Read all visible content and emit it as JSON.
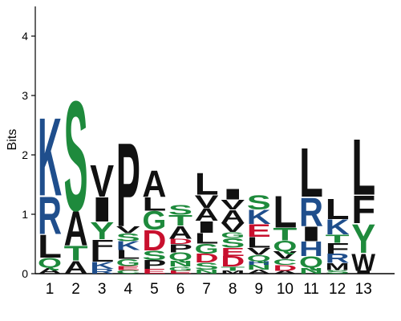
{
  "chart_data": {
    "type": "sequence-logo",
    "ylabel": "Bits",
    "ylim": [
      0,
      4.5
    ],
    "yticks": [
      "0",
      "1",
      "2",
      "3",
      "4"
    ],
    "grid": false,
    "legend": "none",
    "colors": {
      "K": "#1f4e8c",
      "R": "#1f4e8c",
      "H": "#1f4e8c",
      "S": "#1e8a3c",
      "T": "#1e8a3c",
      "G": "#1e8a3c",
      "Y": "#1e8a3c",
      "Q": "#1e8a3c",
      "N": "#1e8a3c",
      "C": "#1e8a3c",
      "D": "#c8102e",
      "E": "#c8102e",
      "A": "#111111",
      "V": "#111111",
      "L": "#111111",
      "I": "#111111",
      "P": "#111111",
      "F": "#111111",
      "M": "#111111",
      "W": "#111111"
    },
    "positions": [
      {
        "label": "1",
        "letters": [
          {
            "c": "A",
            "h": 0.1
          },
          {
            "c": "Q",
            "h": 0.17
          },
          {
            "c": "L",
            "h": 0.4
          },
          {
            "c": "R",
            "h": 0.65
          },
          {
            "c": "K",
            "h": 1.35
          }
        ]
      },
      {
        "label": "2",
        "letters": [
          {
            "c": "A",
            "h": 0.22
          },
          {
            "c": "T",
            "h": 0.25
          },
          {
            "c": "A",
            "h": 0.6
          },
          {
            "c": "S",
            "h": 1.9
          }
        ]
      },
      {
        "label": "3",
        "letters": [
          {
            "c": "R",
            "h": 0.08
          },
          {
            "c": "K",
            "h": 0.12
          },
          {
            "c": "L",
            "h": 0.18
          },
          {
            "c": "F",
            "h": 0.2
          },
          {
            "c": "Y",
            "h": 0.3
          },
          {
            "c": "I",
            "h": 0.42
          },
          {
            "c": "V",
            "h": 0.55
          }
        ]
      },
      {
        "label": "4",
        "letters": [
          {
            "c": "C",
            "h": 0.06
          },
          {
            "c": "E",
            "h": 0.07
          },
          {
            "c": "G",
            "h": 0.12
          },
          {
            "c": "L",
            "h": 0.15
          },
          {
            "c": "K",
            "h": 0.15
          },
          {
            "c": "S",
            "h": 0.13
          },
          {
            "c": "V",
            "h": 0.12
          },
          {
            "c": "P",
            "h": 1.45
          }
        ]
      },
      {
        "label": "5",
        "letters": [
          {
            "c": "E",
            "h": 0.08
          },
          {
            "c": "P",
            "h": 0.15
          },
          {
            "c": "S",
            "h": 0.16
          },
          {
            "c": "D",
            "h": 0.35
          },
          {
            "c": "G",
            "h": 0.32
          },
          {
            "c": "L",
            "h": 0.23
          },
          {
            "c": "A",
            "h": 0.46
          }
        ]
      },
      {
        "label": "6",
        "letters": [
          {
            "c": "E",
            "h": 0.05
          },
          {
            "c": "G",
            "h": 0.07
          },
          {
            "c": "N",
            "h": 0.1
          },
          {
            "c": "Q",
            "h": 0.14
          },
          {
            "c": "P",
            "h": 0.14
          },
          {
            "c": "D",
            "h": 0.09
          },
          {
            "c": "A",
            "h": 0.22
          },
          {
            "c": "T",
            "h": 0.18
          },
          {
            "c": "S",
            "h": 0.17
          }
        ]
      },
      {
        "label": "7",
        "letters": [
          {
            "c": "N",
            "h": 0.07
          },
          {
            "c": "S",
            "h": 0.12
          },
          {
            "c": "D",
            "h": 0.15
          },
          {
            "c": "G",
            "h": 0.17
          },
          {
            "c": "L",
            "h": 0.18
          },
          {
            "c": "I",
            "h": 0.2
          },
          {
            "c": "A",
            "h": 0.22
          },
          {
            "c": "V",
            "h": 0.22
          },
          {
            "c": "L",
            "h": 0.38
          }
        ]
      },
      {
        "label": "8",
        "letters": [
          {
            "c": "M",
            "h": 0.05
          },
          {
            "c": "T",
            "h": 0.07
          },
          {
            "c": "D",
            "h": 0.18
          },
          {
            "c": "E",
            "h": 0.14
          },
          {
            "c": "S",
            "h": 0.16
          },
          {
            "c": "G",
            "h": 0.1
          },
          {
            "c": "V",
            "h": 0.16
          },
          {
            "c": "A",
            "h": 0.22
          },
          {
            "c": "V",
            "h": 0.17
          },
          {
            "c": "I",
            "h": 0.18
          }
        ]
      },
      {
        "label": "9",
        "letters": [
          {
            "c": "A",
            "h": 0.07
          },
          {
            "c": "N",
            "h": 0.08
          },
          {
            "c": "H",
            "h": 0.06
          },
          {
            "c": "Q",
            "h": 0.11
          },
          {
            "c": "V",
            "h": 0.12
          },
          {
            "c": "L",
            "h": 0.18
          },
          {
            "c": "E",
            "h": 0.22
          },
          {
            "c": "K",
            "h": 0.24
          },
          {
            "c": "S",
            "h": 0.24
          }
        ]
      },
      {
        "label": "10",
        "letters": [
          {
            "c": "A",
            "h": 0.05
          },
          {
            "c": "D",
            "h": 0.1
          },
          {
            "c": "C",
            "h": 0.1
          },
          {
            "c": "V",
            "h": 0.13
          },
          {
            "c": "Q",
            "h": 0.18
          },
          {
            "c": "T",
            "h": 0.22
          },
          {
            "c": "L",
            "h": 0.55
          }
        ]
      },
      {
        "label": "11",
        "letters": [
          {
            "c": "N",
            "h": 0.1
          },
          {
            "c": "Q",
            "h": 0.2
          },
          {
            "c": "H",
            "h": 0.25
          },
          {
            "c": "I",
            "h": 0.25
          },
          {
            "c": "R",
            "h": 0.5
          },
          {
            "c": "L",
            "h": 0.85
          }
        ]
      },
      {
        "label": "12",
        "letters": [
          {
            "c": "S",
            "h": 0.06
          },
          {
            "c": "M",
            "h": 0.12
          },
          {
            "c": "R",
            "h": 0.16
          },
          {
            "c": "F",
            "h": 0.18
          },
          {
            "c": "T",
            "h": 0.14
          },
          {
            "c": "K",
            "h": 0.26
          },
          {
            "c": "L",
            "h": 0.35
          }
        ]
      },
      {
        "label": "13",
        "letters": [
          {
            "c": "I",
            "h": 0.05
          },
          {
            "c": "W",
            "h": 0.3
          },
          {
            "c": "Y",
            "h": 0.5
          },
          {
            "c": "F",
            "h": 0.48
          },
          {
            "c": "L",
            "h": 0.97
          }
        ]
      }
    ]
  }
}
